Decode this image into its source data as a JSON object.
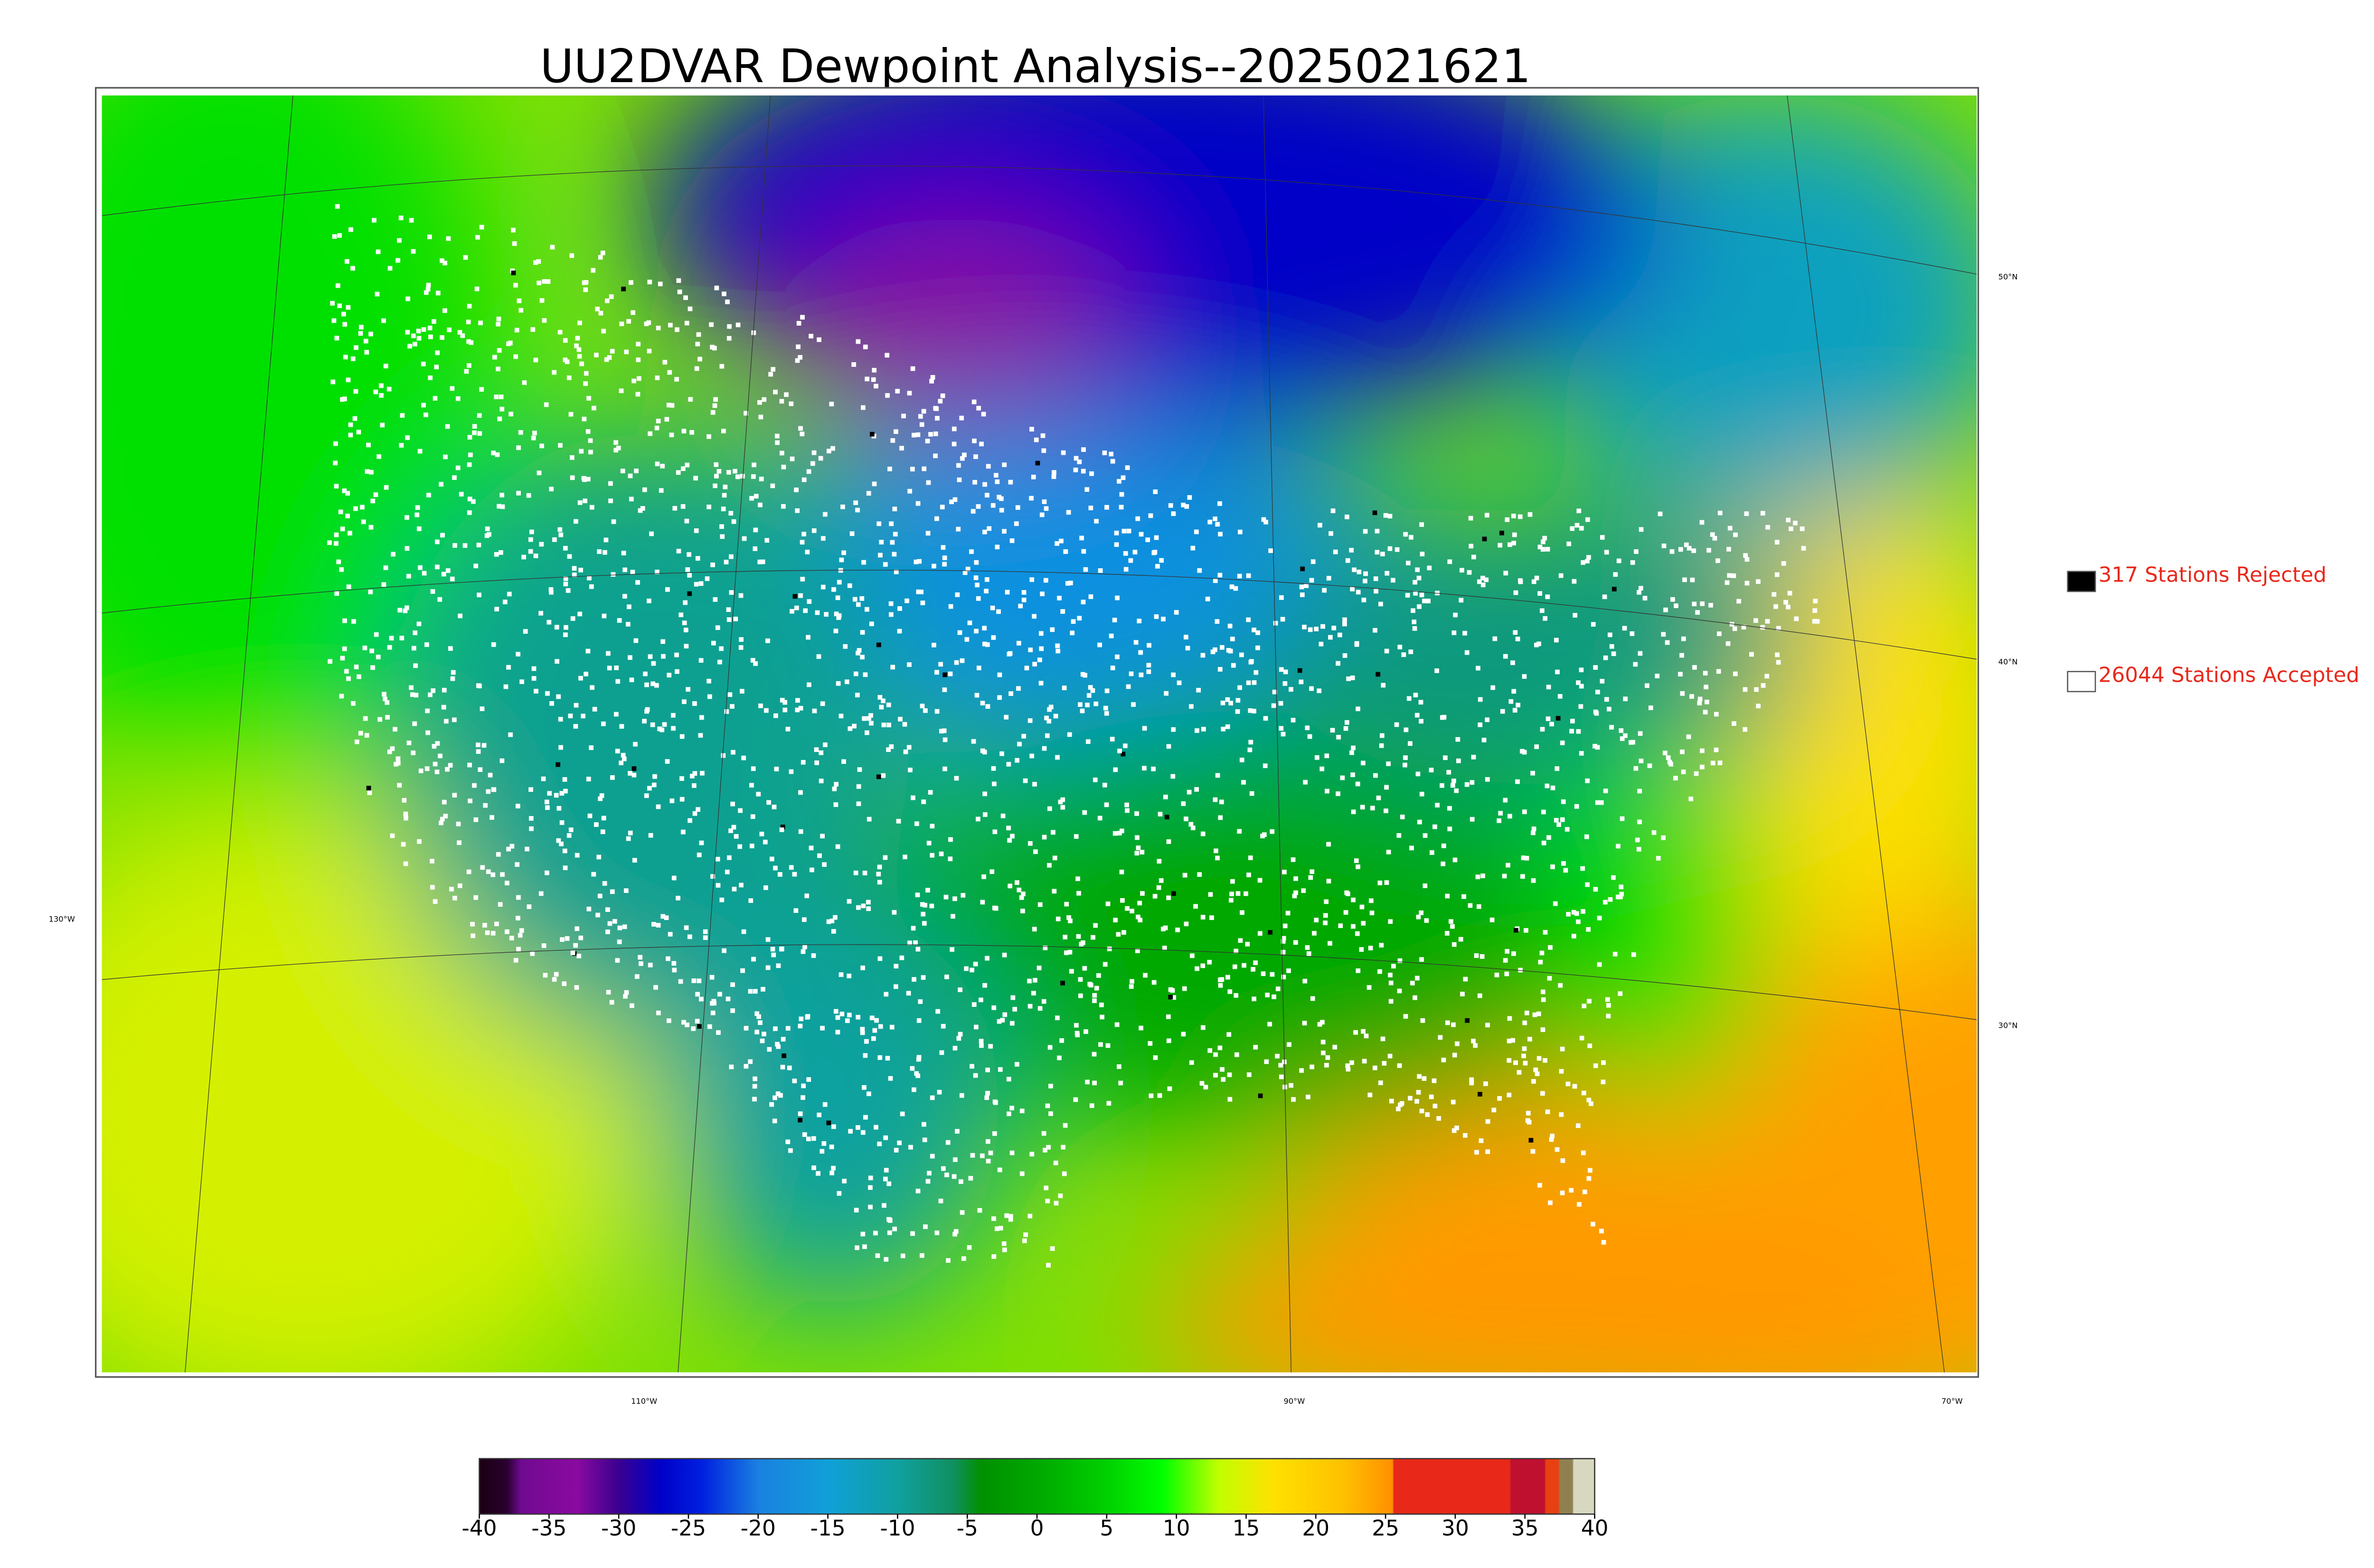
{
  "title": "UU2DVAR Dewpoint Analysis--2025021621",
  "legend": [
    {
      "label": "317 Stations Rejected",
      "color": "#000000"
    },
    {
      "label": "26044 Stations Accepted",
      "color": "#ffffff"
    }
  ],
  "map": {
    "lat_labels": [
      "50°N",
      "40°N",
      "30°N"
    ],
    "lon_labels": [
      "130°W",
      "110°W",
      "90°W",
      "70°W"
    ]
  },
  "colorbar": {
    "lim": [
      -40,
      40
    ],
    "ticks": [
      -40,
      -35,
      -30,
      -25,
      -20,
      -15,
      -10,
      -5,
      0,
      5,
      10,
      15,
      20,
      25,
      30,
      35,
      40
    ],
    "stops": [
      {
        "value": -40,
        "color": "#1a0012"
      },
      {
        "value": -38,
        "color": "#2a0030"
      },
      {
        "value": -37,
        "color": "#700a90"
      },
      {
        "value": -33,
        "color": "#8a0aa0"
      },
      {
        "value": -30,
        "color": "#3a0090"
      },
      {
        "value": -27,
        "color": "#0000c8"
      },
      {
        "value": -24,
        "color": "#0020e0"
      },
      {
        "value": -20,
        "color": "#1a80e0"
      },
      {
        "value": -15,
        "color": "#10a0d8"
      },
      {
        "value": -10,
        "color": "#10a0a0"
      },
      {
        "value": -6,
        "color": "#109060"
      },
      {
        "value": -4,
        "color": "#009000"
      },
      {
        "value": 0,
        "color": "#00a800"
      },
      {
        "value": 5,
        "color": "#00d000"
      },
      {
        "value": 9,
        "color": "#00ff00"
      },
      {
        "value": 13,
        "color": "#c0ff00"
      },
      {
        "value": 17,
        "color": "#ffe000"
      },
      {
        "value": 22,
        "color": "#ffc000"
      },
      {
        "value": 25.5,
        "color": "#ff9000"
      },
      {
        "value": 25.6,
        "color": "#e82818"
      },
      {
        "value": 33.9,
        "color": "#e82818"
      },
      {
        "value": 34,
        "color": "#c01030"
      },
      {
        "value": 36.4,
        "color": "#c01030"
      },
      {
        "value": 36.5,
        "color": "#e84010"
      },
      {
        "value": 37.4,
        "color": "#e84010"
      },
      {
        "value": 37.5,
        "color": "#908050"
      },
      {
        "value": 38.4,
        "color": "#908050"
      },
      {
        "value": 38.5,
        "color": "#d8d8c0"
      },
      {
        "value": 40,
        "color": "#d8d8c0"
      }
    ]
  }
}
